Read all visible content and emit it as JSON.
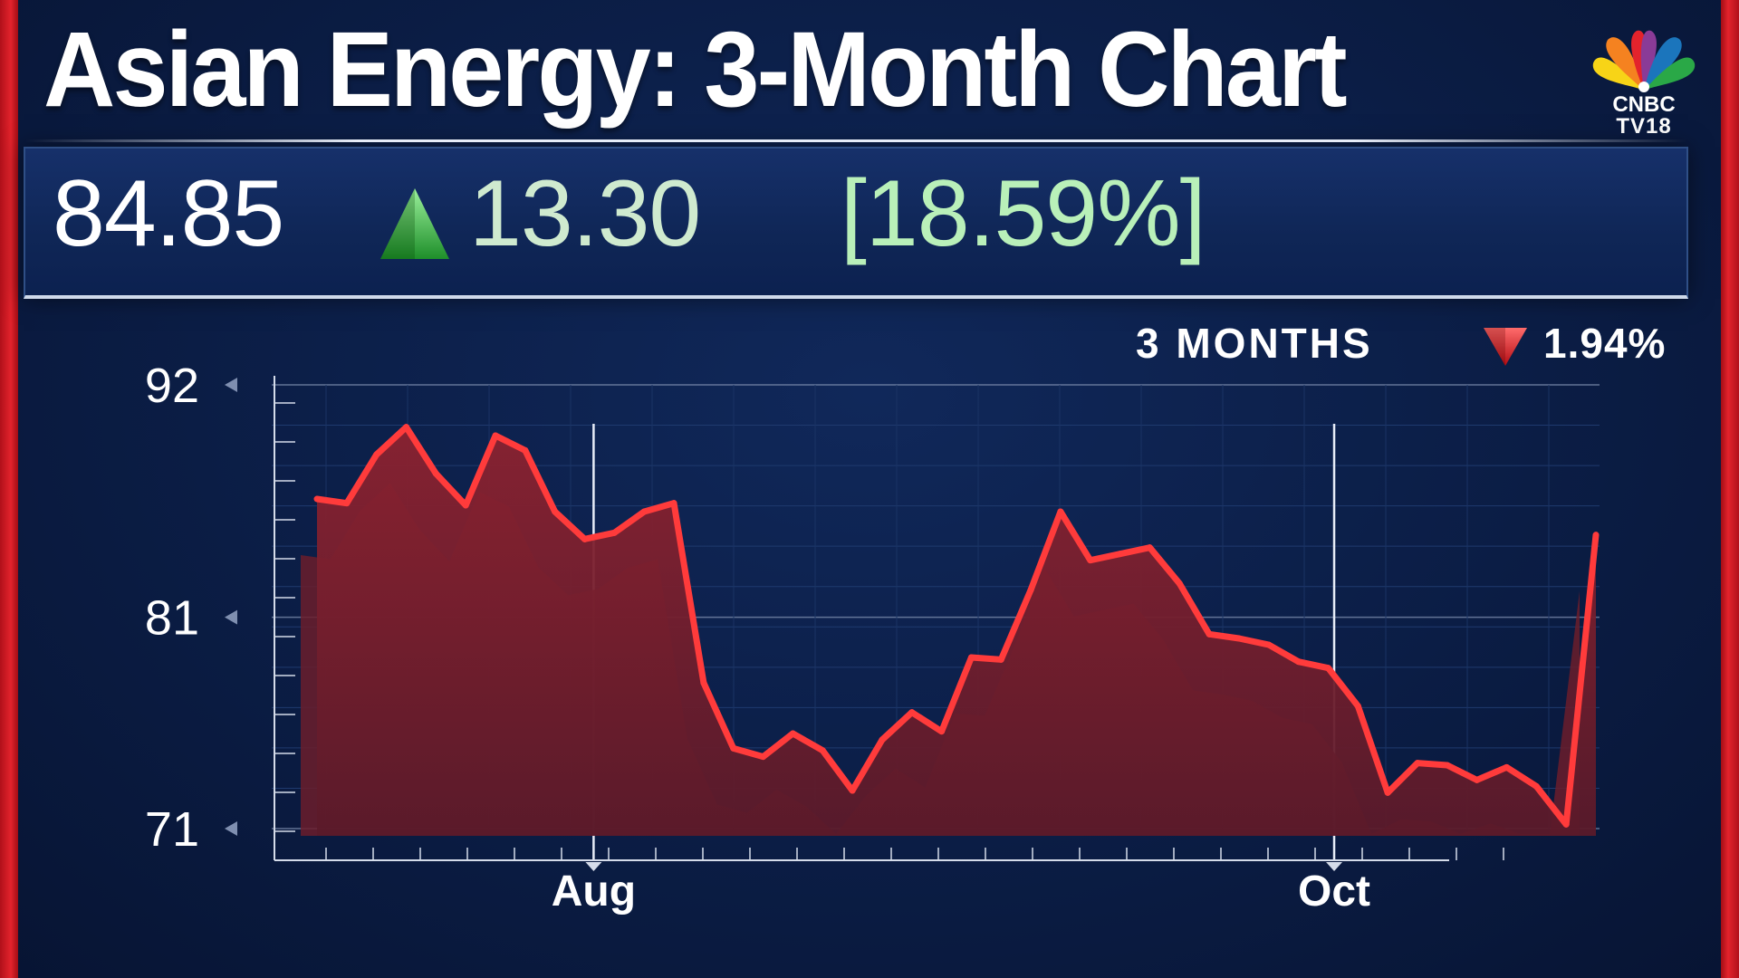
{
  "header": {
    "title": "Asian Energy: 3-Month Chart",
    "logo_line1": "CNBC",
    "logo_line2": "TV18"
  },
  "quote": {
    "price": "84.85",
    "change": "13.30",
    "change_pct": "[18.59%]",
    "direction": "up"
  },
  "period": {
    "label": "3 MONTHS",
    "change": "1.94%",
    "direction": "down"
  },
  "colors": {
    "accent_red": "#e3232c",
    "line": "#ff3b3b",
    "up_green": "#3fbf3f",
    "background": "#0b1d45"
  },
  "chart_data": {
    "type": "area",
    "title": "Asian Energy: 3-Month Chart",
    "xlabel": "",
    "ylabel": "",
    "ylim": [
      71,
      92
    ],
    "yticks": [
      "92",
      "81",
      "71"
    ],
    "xticks": [
      {
        "label": "Aug",
        "index": 9.3
      },
      {
        "label": "Oct",
        "index": 34.2
      }
    ],
    "grid": true,
    "series": [
      {
        "values": [
          86.6,
          86.4,
          88.7,
          90.0,
          87.8,
          86.3,
          89.6,
          88.9,
          86.0,
          84.7,
          85.0,
          86.0,
          86.4,
          77.9,
          74.8,
          74.4,
          75.5,
          74.7,
          72.8,
          75.2,
          76.5,
          75.6,
          79.1,
          79.0,
          82.3,
          86.0,
          83.7,
          84.0,
          84.3,
          82.6,
          80.2,
          80.0,
          79.7,
          78.9,
          78.6,
          76.8,
          72.7,
          74.1,
          74.0,
          73.3,
          73.9,
          73.0,
          71.2,
          84.9
        ]
      }
    ]
  }
}
